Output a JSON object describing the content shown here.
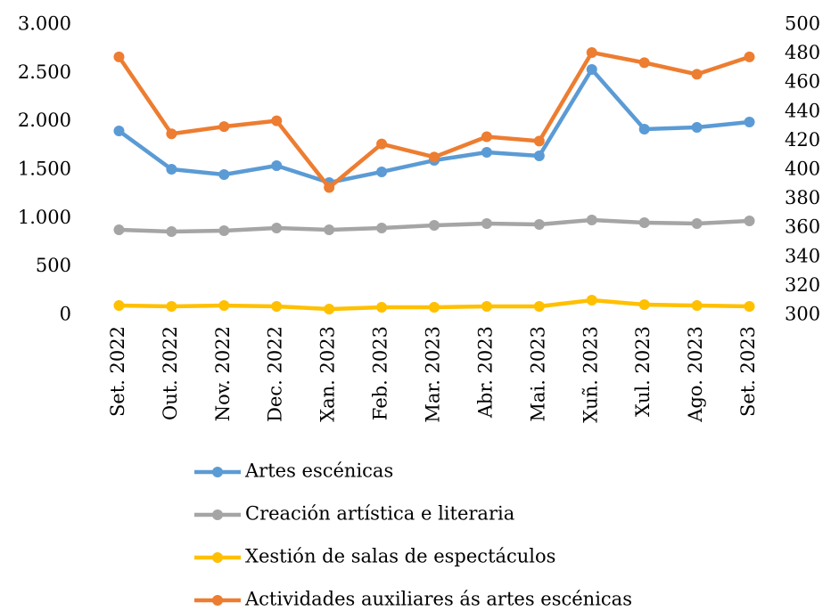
{
  "chart_data": {
    "type": "line",
    "categories": [
      "Set. 2022",
      "Out. 2022",
      "Nov. 2022",
      "Dec. 2022",
      "Xan. 2023",
      "Feb. 2023",
      "Mar. 2023",
      "Abr. 2023",
      "Mai. 2023",
      "Xuñ. 2023",
      "Xul. 2023",
      "Ago. 2023",
      "Set. 2023"
    ],
    "series": [
      {
        "name": "Artes escénicas",
        "color": "#5b9bd5",
        "values": [
          1905,
          1509,
          1454,
          1546,
          1371,
          1482,
          1601,
          1684,
          1647,
          2540,
          1923,
          1942,
          1997
        ]
      },
      {
        "name": "Creación artística e literaria",
        "color": "#a5a5a5",
        "values": [
          883,
          865,
          874,
          902,
          883,
          902,
          929,
          948,
          939,
          985,
          957,
          948,
          975
        ]
      },
      {
        "name": "Xestión de salas de espectáculos",
        "color": "#ffc000",
        "values": [
          101,
          92,
          101,
          92,
          64,
          83,
          83,
          92,
          92,
          156,
          110,
          101,
          92
        ]
      },
      {
        "name": "Actividades auxiliares ás artes escénicas",
        "color": "#ed7d31",
        "axis": "y2",
        "values": [
          478,
          425,
          430,
          434,
          388,
          418,
          409,
          423,
          420,
          481,
          474,
          466,
          478
        ]
      }
    ],
    "ylim": [
      0,
      3000
    ],
    "yticks": [
      0,
      500,
      {
        "value": 1000,
        "label": "1.000"
      },
      {
        "value": 1500,
        "label": "1.500"
      },
      {
        "value": 2000,
        "label": "2.000"
      },
      {
        "value": 2500,
        "label": "2.500"
      },
      {
        "value": 3000,
        "label": "3.000"
      }
    ],
    "y2lim": [
      300,
      500
    ],
    "y2ticks": [
      300,
      320,
      340,
      360,
      380,
      400,
      420,
      440,
      460,
      480,
      500
    ],
    "grid": false,
    "legend": "bottom"
  }
}
